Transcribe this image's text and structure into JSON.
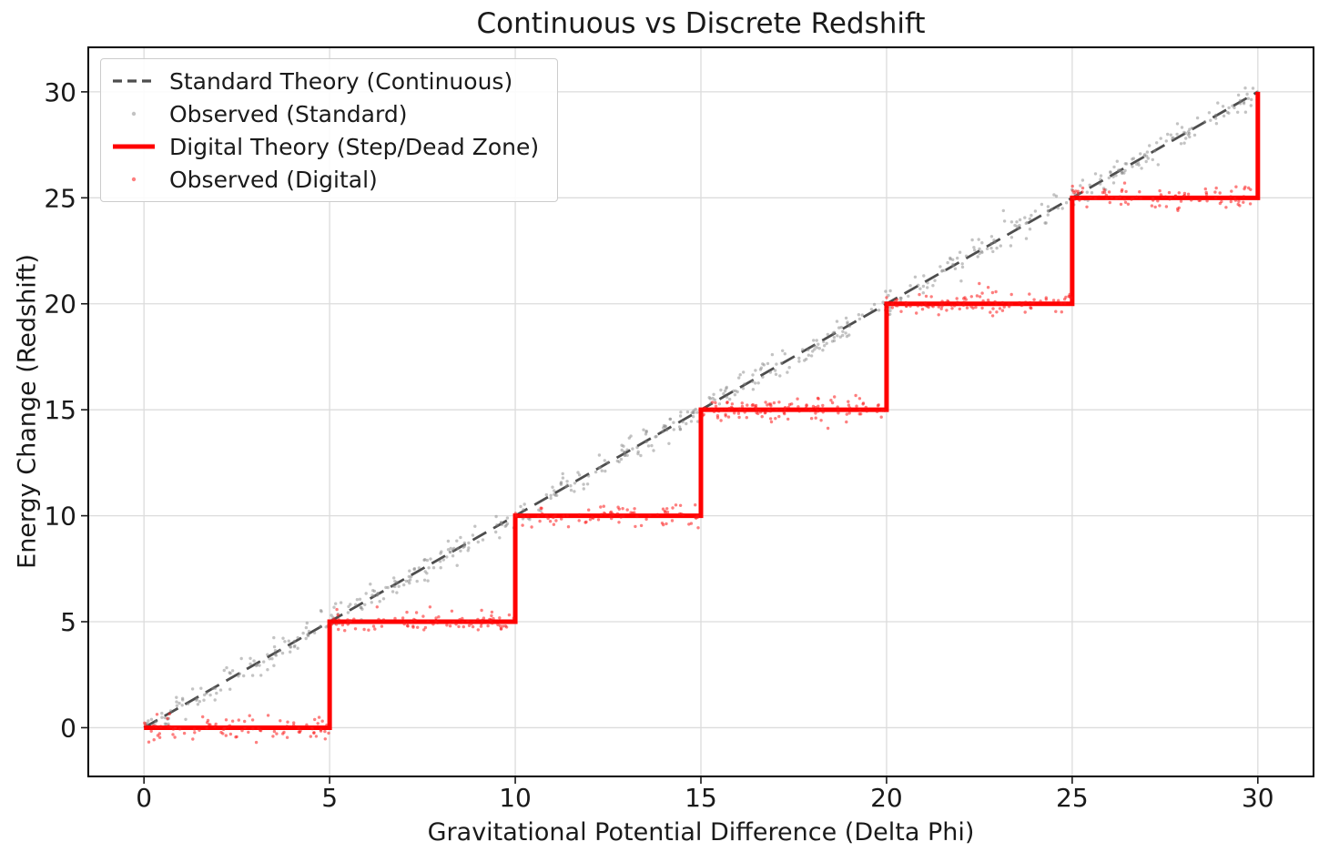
{
  "chart_data": {
    "type": "line+scatter",
    "title": "Continuous vs Discrete Redshift",
    "xlabel": "Gravitational Potential Difference (Delta Phi)",
    "ylabel": "Energy Change (Redshift)",
    "xlim": [
      -1.5,
      31.5
    ],
    "ylim": [
      -2.3,
      32.1
    ],
    "xticks": [
      0,
      5,
      10,
      15,
      20,
      25,
      30
    ],
    "yticks": [
      0,
      5,
      10,
      15,
      20,
      25,
      30
    ],
    "xtick_labels": [
      "0",
      "5",
      "10",
      "15",
      "20",
      "25",
      "30"
    ],
    "ytick_labels": [
      "0",
      "5",
      "10",
      "15",
      "20",
      "25",
      "30"
    ],
    "grid": true,
    "grid_color": "#dcdcdc",
    "background_color": "#ffffff",
    "text_color": "#1a1a1a",
    "spine_color": "#000000",
    "legend": {
      "position": "upper-left",
      "entries": [
        "Standard Theory (Continuous)",
        "Observed (Standard)",
        "Digital Theory (Step/Dead Zone)",
        "Observed (Digital)"
      ]
    },
    "series": [
      {
        "name": "Standard Theory (Continuous)",
        "type": "line",
        "line_style": "dashed",
        "color": "#4d4d4d",
        "line_width": 2.8,
        "points": [
          [
            0,
            0
          ],
          [
            30,
            30
          ]
        ]
      },
      {
        "name": "Observed (Standard)",
        "type": "scatter",
        "color": "#878787",
        "opacity": 0.5,
        "marker_radius": 1.7,
        "kind": "identity",
        "model": "y = x + gaussian noise",
        "n": 600,
        "x_range": [
          0,
          30
        ],
        "noise_sigma": 0.32,
        "seed": 42
      },
      {
        "name": "Digital Theory (Step/Dead Zone)",
        "type": "line",
        "line_style": "solid",
        "color": "#ff0000",
        "line_width": 5,
        "step_size": 5,
        "points": [
          [
            0,
            0
          ],
          [
            5,
            0
          ],
          [
            5,
            5
          ],
          [
            10,
            5
          ],
          [
            10,
            10
          ],
          [
            15,
            10
          ],
          [
            15,
            15
          ],
          [
            20,
            15
          ],
          [
            20,
            20
          ],
          [
            25,
            20
          ],
          [
            25,
            25
          ],
          [
            30,
            25
          ],
          [
            30,
            30
          ]
        ]
      },
      {
        "name": "Observed (Digital)",
        "type": "scatter",
        "color": "#fb1515",
        "opacity": 0.55,
        "marker_radius": 1.7,
        "kind": "step",
        "step_size": 5,
        "model": "y = 5*floor(x/5) + gaussian noise",
        "n": 600,
        "x_range": [
          0,
          30
        ],
        "noise_sigma": 0.27,
        "seed": 7
      }
    ]
  }
}
